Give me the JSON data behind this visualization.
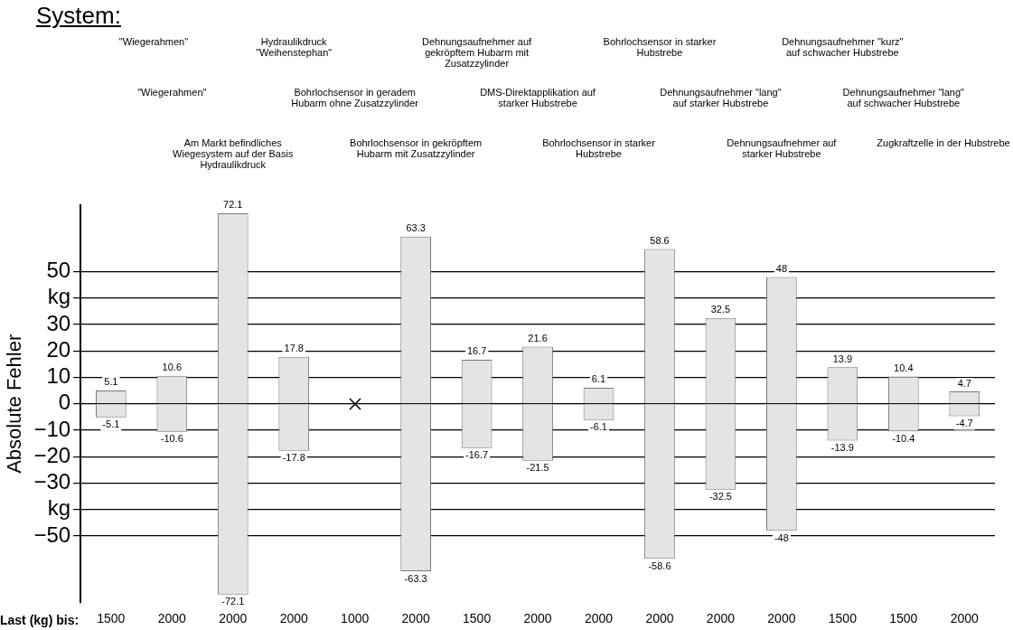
{
  "chart_data": {
    "type": "bar",
    "title": "System:",
    "xlabel": "Last (kg) bis:",
    "ylabel": "Absolute Fehler",
    "categories": [
      "1500",
      "2000",
      "2000",
      "2000",
      "1000",
      "2000",
      "1500",
      "2000",
      "2000",
      "2000",
      "2000",
      "2000",
      "1500",
      "1500",
      "2000"
    ],
    "series": [
      {
        "color": "#e4e4e4",
        "values": [
          5.1,
          10.6,
          72.1,
          17.8,
          null,
          63.3,
          16.7,
          21.6,
          6.1,
          58.6,
          32.5,
          48,
          13.9,
          10.4,
          4.7
        ]
      },
      {
        "color": "#e4e4e4",
        "values": [
          -5.1,
          -10.6,
          -72.1,
          -17.8,
          null,
          -63.3,
          -16.7,
          -21.5,
          -6.1,
          -58.6,
          -32.5,
          -48,
          -13.9,
          -10.4,
          -4.7
        ]
      }
    ],
    "stacked": true,
    "data_labels": true,
    "grid": "y",
    "ylim": [
      -75,
      75
    ],
    "yticks": [
      -50,
      {
        "value": -40,
        "label": "kg"
      },
      -30,
      -20,
      -10,
      0,
      10,
      20,
      30,
      {
        "value": 40,
        "label": "kg"
      },
      50
    ],
    "annotations": [
      "\"Wiegerahmen\"",
      "\"Wiegerahmen\"",
      "Am Markt befindliches Wiegesystem auf der Basis Hydraulikdruck",
      "Hydraulikdruck \"Weihenstephan\"",
      "Bohrlochsensor in geradem Hubarm ohne Zusatzzylinder",
      "Bohrlochsensor in gekröpftem Hubarm mit Zusatzzylinder",
      "Dehnungsaufnehmer auf gekröpftem Hubarm mit Zusatzzylinder",
      "DMS-Direktapplikation auf starker Hubstrebe",
      "Bohrlochsensor in starker Hubstrebe",
      "Bohrlochsensor in starker Hubstrebe",
      "Dehnungsaufnehmer \"lang\" auf starker Hubstrebe",
      "Dehnungsaufnehmer auf starker Hubstrebe",
      "Dehnungsaufnehmer \"kurz\" auf schwacher Hubstrebe",
      "Dehnungsaufnehmer \"lang\" auf schwacher Hubstrebe",
      "Zugkraftzelle in der Hubstrebe"
    ]
  }
}
